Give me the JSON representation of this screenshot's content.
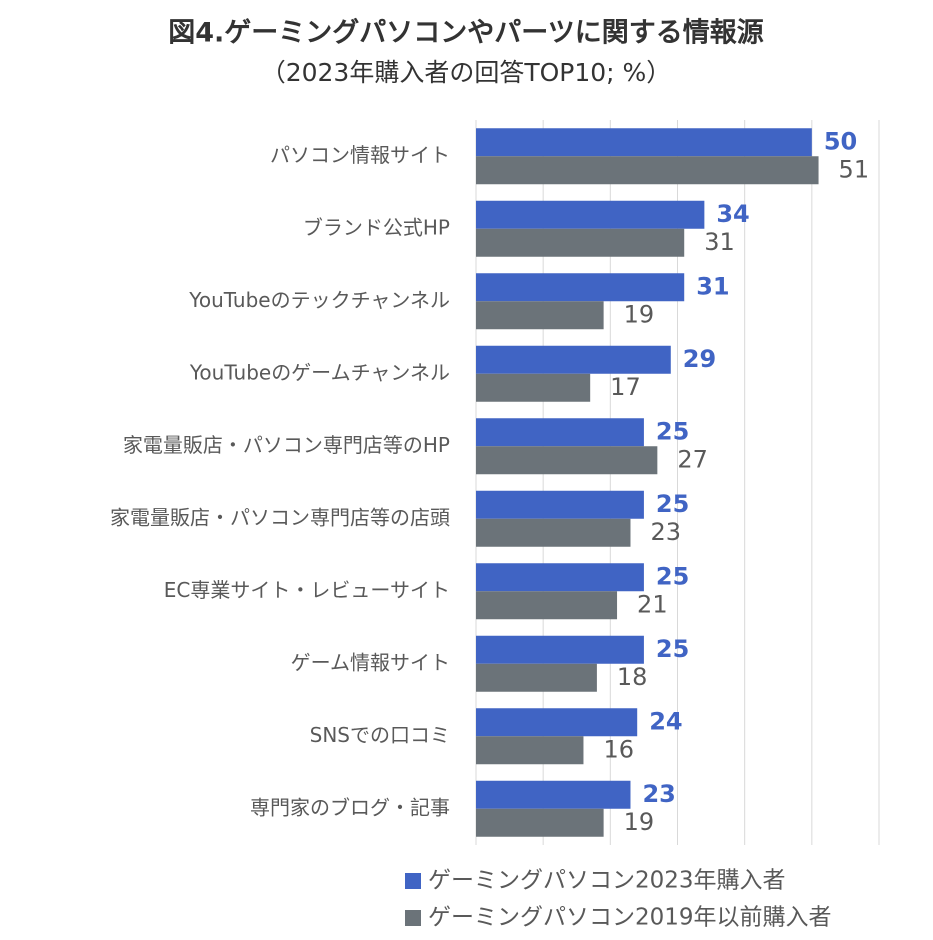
{
  "chart_data": {
    "type": "hbar",
    "title": "図4.ゲーミングパソコンやパーツに関する情報源",
    "subtitle": "（2023年購入者の回答TOP10; %）",
    "categories": [
      "パソコン情報サイト",
      "ブランド公式HP",
      "YouTubeのテックチャンネル",
      "YouTubeのゲームチャンネル",
      "家電量販店・パソコン専門店等のHP",
      "家電量販店・パソコン専門店等の店頭",
      "EC専業サイト・レビューサイト",
      "ゲーム情報サイト",
      "SNSでの口コミ",
      "専門家のブログ・記事"
    ],
    "series": [
      {
        "name": "ゲーミングパソコン2023年購入者",
        "color": "#4064c4",
        "values": [
          50,
          34,
          31,
          29,
          25,
          25,
          25,
          25,
          24,
          23
        ]
      },
      {
        "name": "ゲーミングパソコン2019年以前購入者",
        "color": "#6b7379",
        "values": [
          51,
          31,
          19,
          17,
          27,
          23,
          21,
          18,
          16,
          19
        ]
      }
    ],
    "xlim": [
      0,
      60
    ],
    "xticks": [
      0,
      10,
      20,
      30,
      40,
      50,
      60
    ],
    "grid": true
  }
}
